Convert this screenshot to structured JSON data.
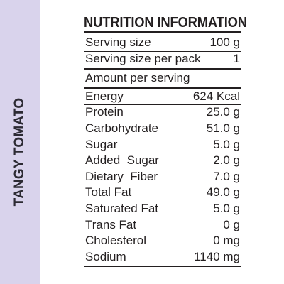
{
  "side_label": "TANGY TOMATO",
  "title": "NUTRITION INFORMATION",
  "serving": [
    {
      "label": "Serving size",
      "value": "100 g"
    },
    {
      "label": "Serving size per pack",
      "value": "1"
    }
  ],
  "amount_per_serving": "Amount per serving",
  "energy": {
    "label": "Energy",
    "value": "624 Kcal"
  },
  "nutrients": [
    {
      "label": "Protein",
      "value": "25.0 g"
    },
    {
      "label": "Carbohydrate",
      "value": "51.0 g"
    },
    {
      "label": "Sugar",
      "value": "5.0 g"
    },
    {
      "label": "Added  Sugar",
      "value": "2.0 g"
    },
    {
      "label": "Dietary  Fiber",
      "value": "7.0 g"
    },
    {
      "label": "Total Fat",
      "value": "49.0 g"
    },
    {
      "label": "Saturated Fat",
      "value": "5.0 g"
    },
    {
      "label": "Trans Fat",
      "value": "0 g"
    },
    {
      "label": "Cholesterol",
      "value": "0 mg"
    },
    {
      "label": "Sodium",
      "value": "1140 mg"
    }
  ],
  "colors": {
    "side_band": "#d9d3ec",
    "text": "#231f20"
  }
}
